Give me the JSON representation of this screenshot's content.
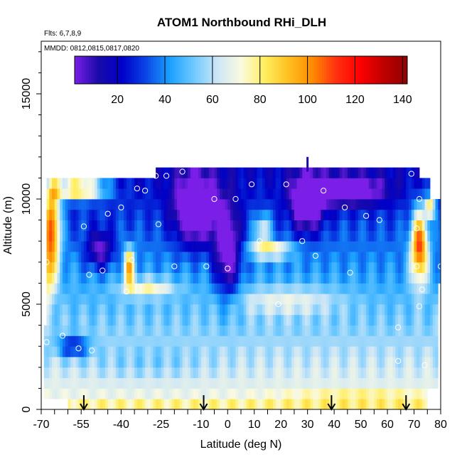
{
  "chart_data": {
    "type": "heatmap",
    "title": "ATOM1 Northbound RHi_DLH",
    "flights_label": "Flts: 6,7,8,9",
    "dates_label": "MMDD: 0812,0815,0817,0820",
    "xlabel": "Latitude (deg N)",
    "ylabel": "Altitude (m)",
    "xlim": [
      -70,
      80
    ],
    "ylim": [
      0,
      17500
    ],
    "x_ticks": [
      {
        "value": -70,
        "label": "-70"
      },
      {
        "value": -55,
        "label": "-55"
      },
      {
        "value": -40,
        "label": "-40"
      },
      {
        "value": -25,
        "label": "-25"
      },
      {
        "value": -10,
        "label": "-10"
      },
      {
        "value": 0,
        "label": "0"
      },
      {
        "value": 10,
        "label": "10"
      },
      {
        "value": 20,
        "label": "20"
      },
      {
        "value": 30,
        "label": "30"
      },
      {
        "value": 40,
        "label": "40"
      },
      {
        "value": 50,
        "label": "50"
      },
      {
        "value": 60,
        "label": "60"
      },
      {
        "value": 70,
        "label": "70"
      },
      {
        "value": 80,
        "label": "80"
      }
    ],
    "y_ticks": [
      {
        "value": 0,
        "label": "0"
      },
      {
        "value": 5000,
        "label": "5000"
      },
      {
        "value": 10000,
        "label": "10000"
      },
      {
        "value": 15000,
        "label": "15000"
      }
    ],
    "colorbar": {
      "range": [
        2,
        142
      ],
      "ticks": [
        20,
        40,
        60,
        80,
        100,
        120,
        140
      ],
      "tick_labels": [
        "20",
        "40",
        "60",
        "80",
        "100",
        "120",
        "140"
      ]
    },
    "colormap": [
      "#7a1ee8",
      "#1a0aa8",
      "#0000c8",
      "#0a46e6",
      "#1aa0ff",
      "#6cc8ff",
      "#cce6f6",
      "#fafae0",
      "#ffee60",
      "#ffc020",
      "#ff8c00",
      "#ff3010",
      "#ff0000",
      "#c00000",
      "#900000"
    ],
    "airport_arrows_lat": [
      -54,
      -9,
      39,
      67
    ],
    "profile_points": [
      {
        "lat": -68,
        "alt": 3200
      },
      {
        "lat": -62,
        "alt": 3500
      },
      {
        "lat": -56,
        "alt": 2900
      },
      {
        "lat": -51,
        "alt": 2800
      },
      {
        "lat": -68,
        "alt": 7000
      },
      {
        "lat": -52,
        "alt": 6400
      },
      {
        "lat": -47,
        "alt": 6600
      },
      {
        "lat": -54,
        "alt": 8700
      },
      {
        "lat": -45,
        "alt": 9300
      },
      {
        "lat": -40,
        "alt": 9600
      },
      {
        "lat": -38,
        "alt": 5600
      },
      {
        "lat": -36,
        "alt": 7100
      },
      {
        "lat": -34,
        "alt": 10500
      },
      {
        "lat": -31,
        "alt": 10400
      },
      {
        "lat": -26,
        "alt": 8800
      },
      {
        "lat": -27,
        "alt": 11100
      },
      {
        "lat": -23,
        "alt": 11100
      },
      {
        "lat": -20,
        "alt": 6800
      },
      {
        "lat": -17,
        "alt": 11300
      },
      {
        "lat": -8,
        "alt": 6800
      },
      {
        "lat": -5,
        "alt": 10000
      },
      {
        "lat": 0,
        "alt": 6700
      },
      {
        "lat": 3,
        "alt": 10000
      },
      {
        "lat": 9,
        "alt": 10700
      },
      {
        "lat": 12,
        "alt": 8000
      },
      {
        "lat": 19,
        "alt": 5000
      },
      {
        "lat": 22,
        "alt": 10700
      },
      {
        "lat": 28,
        "alt": 8000
      },
      {
        "lat": 33,
        "alt": 7300
      },
      {
        "lat": 36,
        "alt": 10400
      },
      {
        "lat": 44,
        "alt": 9600
      },
      {
        "lat": 46,
        "alt": 6500
      },
      {
        "lat": 52,
        "alt": 9200
      },
      {
        "lat": 57,
        "alt": 9000
      },
      {
        "lat": 64,
        "alt": 3900
      },
      {
        "lat": 64,
        "alt": 2300
      },
      {
        "lat": 69,
        "alt": 11200
      },
      {
        "lat": 71,
        "alt": 8600
      },
      {
        "lat": 71,
        "alt": 6800
      },
      {
        "lat": 72,
        "alt": 10000
      },
      {
        "lat": 72,
        "alt": 4900
      },
      {
        "lat": 73,
        "alt": 5700
      },
      {
        "lat": 74,
        "alt": 2100
      },
      {
        "lat": 80,
        "alt": 6800
      }
    ]
  }
}
